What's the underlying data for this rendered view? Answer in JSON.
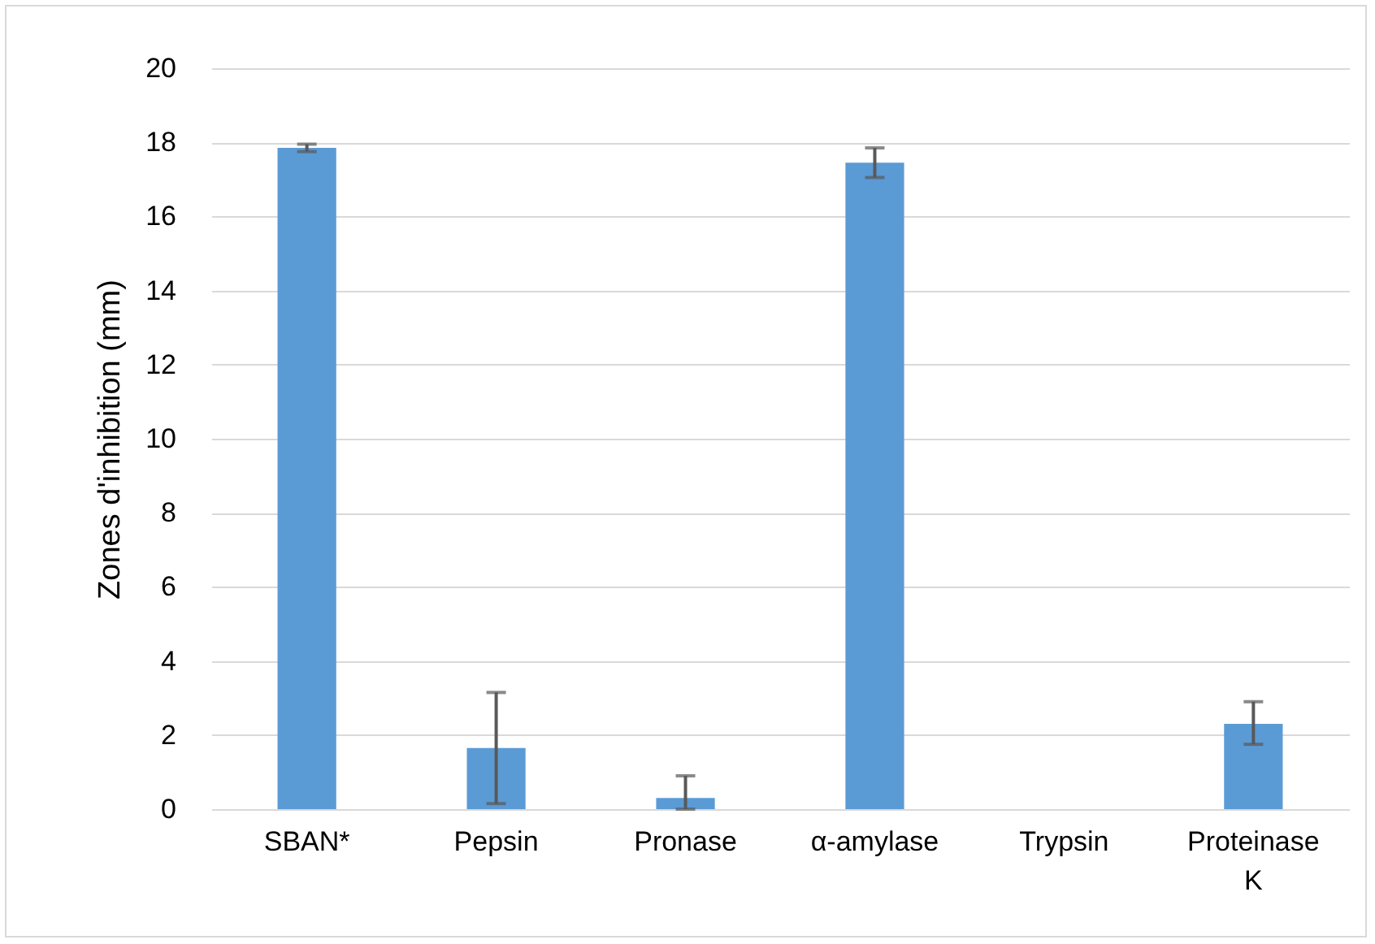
{
  "chart_data": {
    "type": "bar",
    "ylabel": "Zones d'inhibition (mm)",
    "categories": [
      "SBAN*",
      "Pepsin",
      "Pronase",
      "α-amylase",
      "Trypsin",
      "Proteinase K"
    ],
    "values": [
      17.85,
      1.65,
      0.3,
      17.45,
      0,
      2.3
    ],
    "errors": [
      0.1,
      1.5,
      [
        0,
        0.9
      ],
      0.4,
      null,
      [
        1.75,
        2.9
      ]
    ],
    "color": "#5b9bd5",
    "ylim": [
      0,
      20
    ],
    "yticks": [
      0,
      2,
      4,
      6,
      8,
      10,
      12,
      14,
      16,
      18,
      20
    ],
    "grid": "y"
  }
}
